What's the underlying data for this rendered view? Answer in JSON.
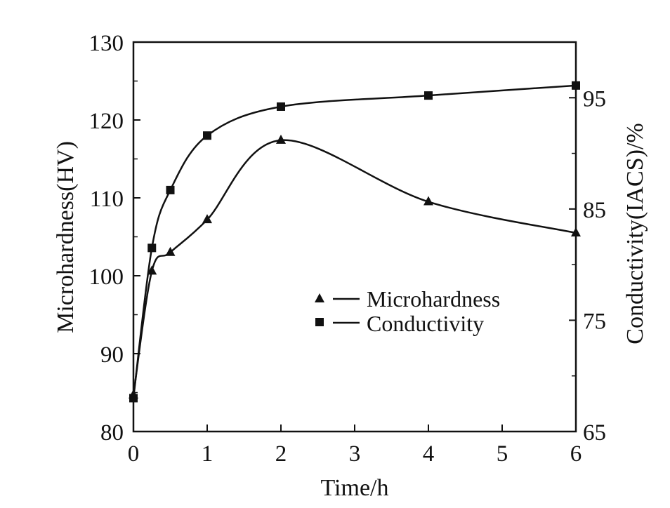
{
  "chart_data": {
    "type": "line",
    "xlabel": "Time/h",
    "ylabel_left": "Microhardness(HV)",
    "ylabel_right": "Conductivity(IACS)/%",
    "xlim": [
      0,
      6
    ],
    "ylim_left": [
      80,
      130
    ],
    "ylim_right": [
      65,
      100
    ],
    "x_ticks": [
      "0",
      "1",
      "2",
      "3",
      "4",
      "5",
      "6"
    ],
    "y_left_ticks": [
      "80",
      "90",
      "100",
      "110",
      "120",
      "130"
    ],
    "y_right_ticks": [
      "65",
      "75",
      "85",
      "95"
    ],
    "grid": false,
    "legend_position": "center-right",
    "series": [
      {
        "name": "Microhardness",
        "axis": "left",
        "marker": "triangle",
        "color": "#111111",
        "x": [
          0,
          0.25,
          0.5,
          1,
          2,
          4,
          6
        ],
        "y": [
          84.7,
          100.6,
          103.0,
          107.2,
          117.4,
          109.5,
          105.5
        ]
      },
      {
        "name": "Conductivity",
        "axis": "right",
        "marker": "square",
        "color": "#111111",
        "x": [
          0,
          0.25,
          0.5,
          1,
          2,
          4,
          6
        ],
        "y": [
          68.0,
          81.5,
          86.7,
          91.6,
          94.2,
          95.2,
          96.1
        ]
      }
    ]
  }
}
